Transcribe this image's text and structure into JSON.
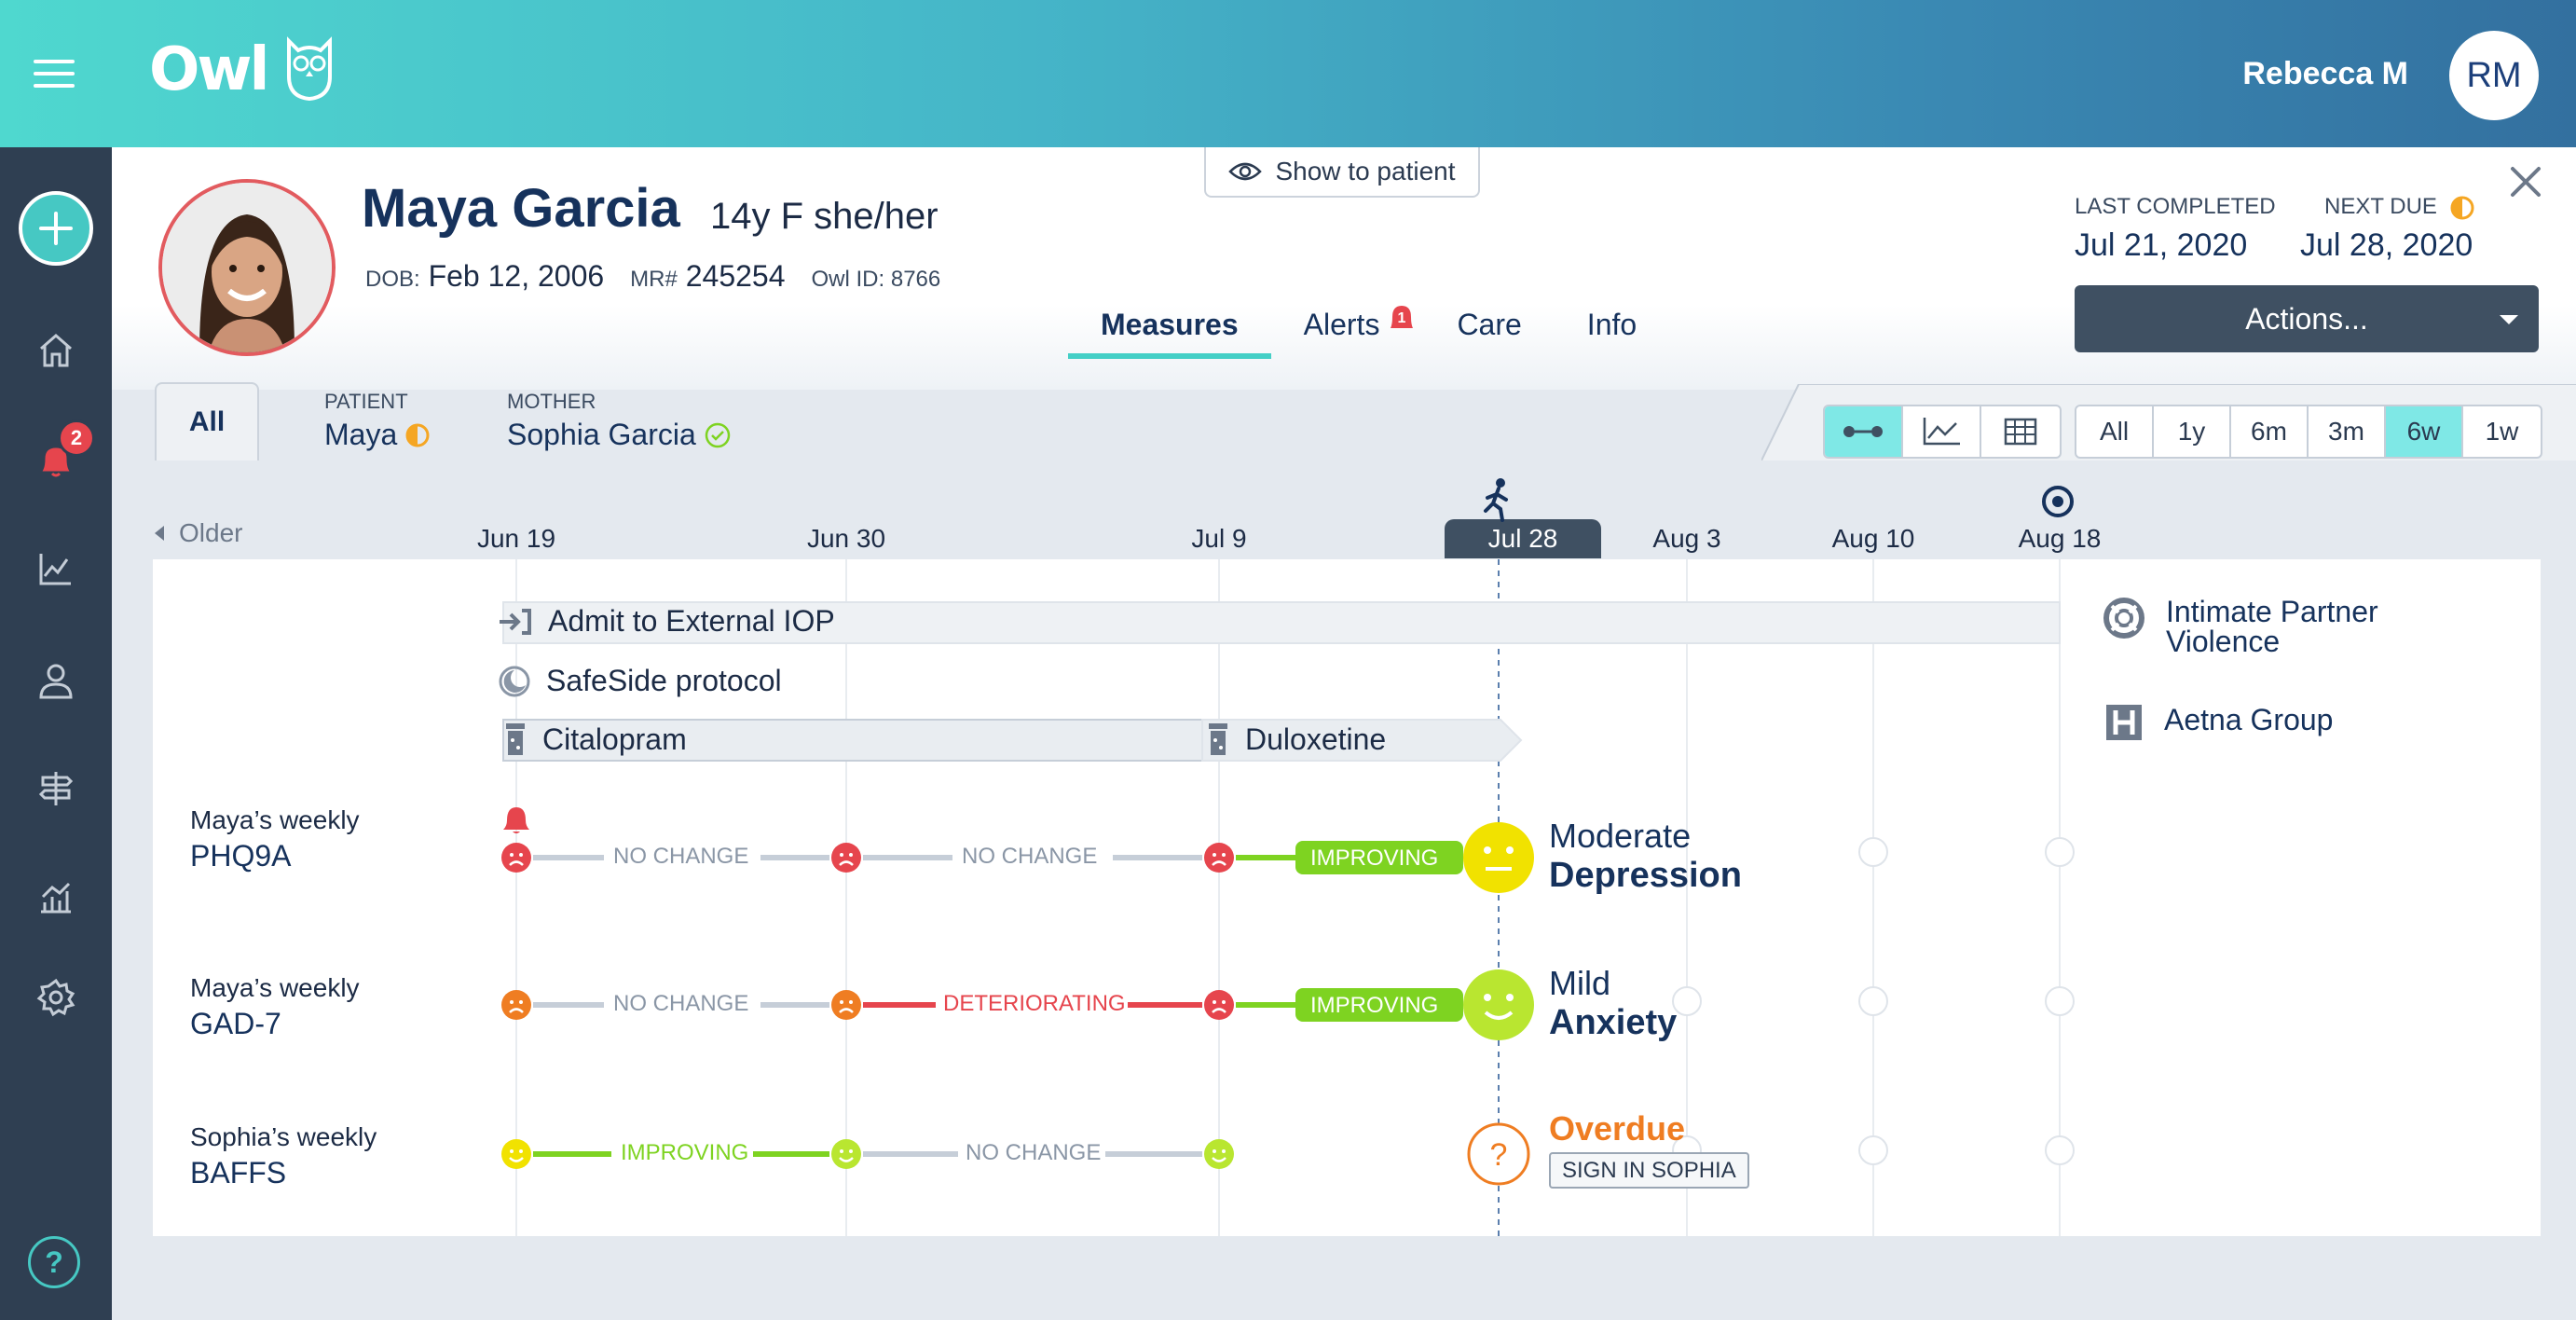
{
  "app": {
    "logo": "Owl",
    "user_name": "Rebecca M",
    "user_initials": "RM"
  },
  "sidebar": {
    "alert_count": "2",
    "help_label": "?"
  },
  "patient": {
    "name": "Maya Garcia",
    "summary": "14y F she/her",
    "dob_label": "DOB:",
    "dob": "Feb 12, 2006",
    "mr_label": "MR#",
    "mr": "245254",
    "owl_id_label": "Owl ID:",
    "owl_id": "8766"
  },
  "show_to_patient": "Show to patient",
  "tabs": [
    {
      "label": "Measures"
    },
    {
      "label": "Alerts",
      "badge": "1"
    },
    {
      "label": "Care"
    },
    {
      "label": "Info"
    }
  ],
  "status": {
    "last_completed_label": "LAST COMPLETED",
    "last_completed": "Jul 21, 2020",
    "next_due_label": "NEXT DUE",
    "next_due": "Jul 28, 2020"
  },
  "actions_label": "Actions...",
  "subjects": {
    "all_label": "All",
    "patient_label": "PATIENT",
    "patient_value": "Maya",
    "mother_label": "MOTHER",
    "mother_value": "Sophia Garcia"
  },
  "ranges": [
    "All",
    "1y",
    "6m",
    "3m",
    "6w",
    "1w"
  ],
  "active_range": "6w",
  "timeline": {
    "older_label": "Older",
    "dates": [
      {
        "label": "Jun 19"
      },
      {
        "label": "Jun 30"
      },
      {
        "label": "Jul 9"
      },
      {
        "label": "Jul 28",
        "today": true
      },
      {
        "label": "Aug 3"
      },
      {
        "label": "Aug 10"
      },
      {
        "label": "Aug 18"
      }
    ]
  },
  "episodes": {
    "admit": "Admit to External IOP",
    "safeside": "SafeSide protocol",
    "med1": "Citalopram",
    "med2": "Duloxetine"
  },
  "measures": [
    {
      "owner": "Maya’s weekly",
      "name": "PHQ9A",
      "segments": [
        "NO CHANGE",
        "NO CHANGE",
        "IMPROVING"
      ],
      "result_top": "Moderate",
      "result_bottom": "Depression"
    },
    {
      "owner": "Maya’s weekly",
      "name": "GAD-7",
      "segments": [
        "NO CHANGE",
        "DETERIORATING",
        "IMPROVING"
      ],
      "result_top": "Mild",
      "result_bottom": "Anxiety"
    },
    {
      "owner": "Sophia’s weekly",
      "name": "BAFFS",
      "segments": [
        "IMPROVING",
        "NO CHANGE"
      ],
      "result_top": "Overdue",
      "result_action": "SIGN IN SOPHIA"
    }
  ],
  "side_notes": {
    "ipv": "Intimate Partner Violence",
    "insurance": "Aetna Group"
  },
  "colors": {
    "accent": "#44cfc6",
    "red": "#e6454d",
    "orange": "#ef7d22",
    "green": "#7ed321",
    "yellow": "#f1e200",
    "navy": "#16325c"
  }
}
